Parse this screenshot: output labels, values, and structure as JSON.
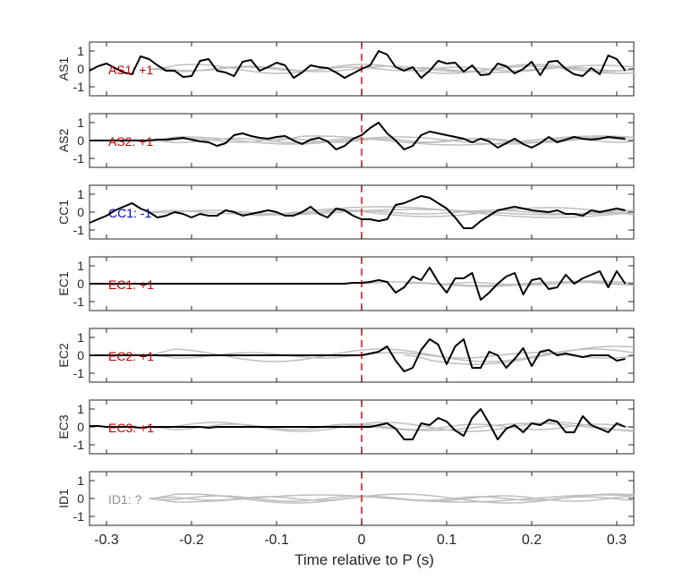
{
  "chart_data": {
    "type": "line",
    "xlabel": "Time relative to P (s)",
    "xlim": [
      -0.32,
      0.32
    ],
    "xticks": [
      -0.3,
      -0.2,
      -0.1,
      0,
      0.1,
      0.2,
      0.3
    ],
    "xtick_labels": [
      "-0.3",
      "-0.2",
      "-0.1",
      "0",
      "0.1",
      "0.2",
      "0.3"
    ],
    "ylim": [
      -1.5,
      1.5
    ],
    "yticks": [
      -1,
      0,
      1
    ],
    "ytick_labels": [
      "-1",
      "0",
      "1"
    ],
    "marker_line": {
      "x": 0,
      "color": "#e01010",
      "style": "dashed"
    },
    "colors": {
      "main": "#000000",
      "background_traces": "#bfbfbf",
      "positive_label": "#c00000",
      "negative_label": "#0000c0",
      "unknown_label": "#909090"
    },
    "panels": [
      {
        "ylabel": "AS1",
        "label": "AS1: +1",
        "polarity": "positive",
        "x": [
          -0.32,
          -0.31,
          -0.3,
          -0.29,
          -0.28,
          -0.27,
          -0.26,
          -0.25,
          -0.24,
          -0.23,
          -0.22,
          -0.21,
          -0.2,
          -0.19,
          -0.18,
          -0.17,
          -0.16,
          -0.15,
          -0.14,
          -0.13,
          -0.12,
          -0.11,
          -0.1,
          -0.09,
          -0.08,
          -0.07,
          -0.06,
          -0.05,
          -0.04,
          -0.03,
          -0.02,
          -0.01,
          0,
          0.01,
          0.02,
          0.03,
          0.04,
          0.05,
          0.06,
          0.07,
          0.08,
          0.09,
          0.1,
          0.11,
          0.12,
          0.13,
          0.14,
          0.15,
          0.16,
          0.17,
          0.18,
          0.19,
          0.2,
          0.21,
          0.22,
          0.23,
          0.24,
          0.25,
          0.26,
          0.27,
          0.28,
          0.29,
          0.3,
          0.31
        ],
        "y": [
          -0.1,
          0.15,
          0.3,
          0.05,
          -0.2,
          -0.3,
          0.7,
          0.55,
          0.2,
          -0.1,
          -0.1,
          -0.45,
          -0.4,
          0.45,
          0.55,
          -0.1,
          -0.2,
          -0.4,
          0.4,
          0.5,
          -0.1,
          0.1,
          0.35,
          0.2,
          -0.5,
          -0.2,
          0.2,
          0.1,
          0.05,
          -0.2,
          -0.5,
          -0.25,
          0.0,
          0.2,
          1.0,
          0.8,
          0.1,
          -0.1,
          0.1,
          -0.5,
          -0.1,
          0.45,
          0.3,
          0.35,
          -0.15,
          0.2,
          -0.35,
          -0.3,
          0.3,
          0.15,
          -0.25,
          0.0,
          0.4,
          -0.35,
          0.4,
          0.45,
          0.0,
          -0.3,
          -0.4,
          0.05,
          -0.3,
          0.75,
          0.55,
          -0.1
        ],
        "background": [
          {
            "amp": 0.15,
            "freq": 6,
            "phase": 0.3,
            "start": -0.25
          },
          {
            "amp": 0.25,
            "freq": 5,
            "phase": 1.5,
            "start": -0.25
          },
          {
            "amp": 0.1,
            "freq": 8,
            "phase": 2.1,
            "start": -0.25
          },
          {
            "amp": 0.2,
            "freq": 4,
            "phase": 0.8,
            "start": 0.05
          }
        ]
      },
      {
        "ylabel": "AS2",
        "label": "AS2: +1",
        "polarity": "positive",
        "x": [
          -0.32,
          -0.31,
          -0.3,
          -0.29,
          -0.28,
          -0.27,
          -0.26,
          -0.25,
          -0.24,
          -0.23,
          -0.22,
          -0.21,
          -0.2,
          -0.19,
          -0.18,
          -0.17,
          -0.16,
          -0.15,
          -0.14,
          -0.13,
          -0.12,
          -0.11,
          -0.1,
          -0.09,
          -0.08,
          -0.07,
          -0.06,
          -0.05,
          -0.04,
          -0.03,
          -0.02,
          -0.01,
          0,
          0.01,
          0.02,
          0.03,
          0.04,
          0.05,
          0.06,
          0.07,
          0.08,
          0.09,
          0.1,
          0.11,
          0.12,
          0.13,
          0.14,
          0.15,
          0.16,
          0.17,
          0.18,
          0.19,
          0.2,
          0.21,
          0.22,
          0.23,
          0.24,
          0.25,
          0.26,
          0.27,
          0.28,
          0.29,
          0.3,
          0.31
        ],
        "y": [
          0.0,
          0.0,
          0.0,
          0.0,
          0.0,
          0.0,
          0.0,
          0.0,
          0.05,
          0.05,
          0.1,
          0.15,
          0.05,
          -0.05,
          -0.1,
          -0.3,
          -0.15,
          0.3,
          0.4,
          0.25,
          0.15,
          0.1,
          0.2,
          0.25,
          0.0,
          -0.2,
          0.05,
          0.15,
          -0.05,
          -0.5,
          -0.3,
          0.1,
          0.3,
          0.7,
          1.0,
          0.4,
          0.0,
          -0.5,
          -0.3,
          0.3,
          0.5,
          0.4,
          0.3,
          0.2,
          0.1,
          -0.1,
          0.1,
          -0.05,
          -0.4,
          -0.15,
          0.1,
          -0.2,
          -0.4,
          -0.15,
          0.2,
          -0.1,
          0.05,
          0.2,
          0.1,
          0.05,
          0.1,
          0.2,
          0.15,
          0.1
        ],
        "background": [
          {
            "amp": 0.2,
            "freq": 4,
            "phase": 0.5,
            "start": -0.25
          },
          {
            "amp": 0.12,
            "freq": 7,
            "phase": 1.8,
            "start": -0.25
          },
          {
            "amp": 0.25,
            "freq": 3,
            "phase": 2.6,
            "start": -0.1
          },
          {
            "amp": 0.1,
            "freq": 9,
            "phase": 0.2,
            "start": -0.25
          }
        ]
      },
      {
        "ylabel": "CC1",
        "label": "CC1: -1",
        "polarity": "negative",
        "x": [
          -0.32,
          -0.31,
          -0.3,
          -0.29,
          -0.28,
          -0.27,
          -0.26,
          -0.25,
          -0.24,
          -0.23,
          -0.22,
          -0.21,
          -0.2,
          -0.19,
          -0.18,
          -0.17,
          -0.16,
          -0.15,
          -0.14,
          -0.13,
          -0.12,
          -0.11,
          -0.1,
          -0.09,
          -0.08,
          -0.07,
          -0.06,
          -0.05,
          -0.04,
          -0.03,
          -0.02,
          -0.01,
          0,
          0.01,
          0.02,
          0.03,
          0.04,
          0.05,
          0.06,
          0.07,
          0.08,
          0.09,
          0.1,
          0.11,
          0.12,
          0.13,
          0.14,
          0.15,
          0.16,
          0.17,
          0.18,
          0.19,
          0.2,
          0.21,
          0.22,
          0.23,
          0.24,
          0.25,
          0.26,
          0.27,
          0.28,
          0.29,
          0.3,
          0.31
        ],
        "y": [
          -0.6,
          -0.4,
          -0.2,
          0.1,
          0.3,
          0.5,
          0.2,
          0.0,
          -0.3,
          -0.2,
          0.0,
          -0.1,
          -0.3,
          -0.1,
          -0.2,
          -0.2,
          0.1,
          0.0,
          -0.2,
          -0.1,
          0.0,
          0.1,
          0.0,
          -0.2,
          -0.2,
          0.0,
          0.3,
          -0.1,
          -0.3,
          0.2,
          0.1,
          -0.2,
          -0.4,
          -0.4,
          -0.5,
          -0.4,
          0.4,
          0.5,
          0.7,
          0.9,
          0.8,
          0.5,
          0.2,
          -0.3,
          -0.9,
          -0.9,
          -0.5,
          -0.2,
          0.1,
          0.2,
          0.3,
          0.2,
          0.1,
          0.05,
          0.0,
          0.1,
          -0.1,
          -0.1,
          -0.2,
          0.1,
          0.0,
          0.1,
          0.2,
          0.1
        ],
        "background": [
          {
            "amp": 0.15,
            "freq": 3,
            "phase": 0.4,
            "start": -0.25
          },
          {
            "amp": 0.3,
            "freq": 2.5,
            "phase": 1.2,
            "start": -0.15
          },
          {
            "amp": 0.1,
            "freq": 6,
            "phase": 2.0,
            "start": -0.25
          },
          {
            "amp": 0.25,
            "freq": 3.5,
            "phase": 3.0,
            "start": -0.05
          }
        ]
      },
      {
        "ylabel": "EC1",
        "label": "EC1: +1",
        "polarity": "positive",
        "x": [
          -0.32,
          -0.31,
          -0.3,
          -0.29,
          -0.28,
          -0.27,
          -0.26,
          -0.25,
          -0.24,
          -0.23,
          -0.22,
          -0.21,
          -0.2,
          -0.19,
          -0.18,
          -0.17,
          -0.16,
          -0.15,
          -0.14,
          -0.13,
          -0.12,
          -0.11,
          -0.1,
          -0.09,
          -0.08,
          -0.07,
          -0.06,
          -0.05,
          -0.04,
          -0.03,
          -0.02,
          -0.01,
          0,
          0.01,
          0.02,
          0.03,
          0.04,
          0.05,
          0.06,
          0.07,
          0.08,
          0.09,
          0.1,
          0.11,
          0.12,
          0.13,
          0.14,
          0.15,
          0.16,
          0.17,
          0.18,
          0.19,
          0.2,
          0.21,
          0.22,
          0.23,
          0.24,
          0.25,
          0.26,
          0.27,
          0.28,
          0.29,
          0.3,
          0.31
        ],
        "y": [
          0.0,
          0.0,
          0.0,
          0.0,
          0.0,
          0.0,
          0.0,
          0.0,
          0.0,
          0.0,
          0.0,
          0.0,
          0.0,
          0.0,
          0.0,
          0.0,
          0.0,
          0.0,
          0.0,
          0.0,
          0.0,
          0.0,
          0.0,
          0.0,
          0.0,
          0.0,
          0.0,
          0.0,
          0.0,
          0.0,
          0.0,
          0.05,
          0.05,
          0.1,
          0.2,
          0.1,
          -0.5,
          -0.2,
          0.4,
          0.2,
          0.9,
          0.1,
          -0.5,
          0.3,
          0.3,
          0.6,
          -0.9,
          -0.5,
          0.0,
          0.4,
          0.6,
          -0.6,
          0.2,
          0.3,
          -0.3,
          -0.2,
          0.5,
          0.0,
          0.3,
          0.5,
          0.7,
          -0.2,
          0.7,
          0.0
        ],
        "background": [
          {
            "amp": 0.1,
            "freq": 5,
            "phase": 0.3,
            "start": 0.0
          },
          {
            "amp": 0.15,
            "freq": 4,
            "phase": 1.1,
            "start": 0.05
          },
          {
            "amp": 0.08,
            "freq": 7,
            "phase": 2.4,
            "start": 0.1
          }
        ]
      },
      {
        "ylabel": "EC2",
        "label": "EC2: +1",
        "polarity": "positive",
        "x": [
          -0.32,
          -0.31,
          -0.3,
          -0.29,
          -0.28,
          -0.27,
          -0.26,
          -0.25,
          -0.24,
          -0.23,
          -0.22,
          -0.21,
          -0.2,
          -0.19,
          -0.18,
          -0.17,
          -0.16,
          -0.15,
          -0.14,
          -0.13,
          -0.12,
          -0.11,
          -0.1,
          -0.09,
          -0.08,
          -0.07,
          -0.06,
          -0.05,
          -0.04,
          -0.03,
          -0.02,
          -0.01,
          0,
          0.01,
          0.02,
          0.03,
          0.04,
          0.05,
          0.06,
          0.07,
          0.08,
          0.09,
          0.1,
          0.11,
          0.12,
          0.13,
          0.14,
          0.15,
          0.16,
          0.17,
          0.18,
          0.19,
          0.2,
          0.21,
          0.22,
          0.23,
          0.24,
          0.25,
          0.26,
          0.27,
          0.28,
          0.29,
          0.3,
          0.31
        ],
        "y": [
          0.0,
          0.0,
          0.0,
          0.0,
          0.0,
          0.0,
          0.0,
          0.0,
          0.0,
          0.0,
          0.0,
          0.0,
          0.0,
          0.0,
          0.0,
          0.0,
          0.0,
          0.0,
          0.0,
          0.0,
          0.0,
          0.0,
          0.0,
          0.0,
          0.0,
          0.0,
          0.0,
          0.0,
          0.0,
          0.0,
          0.0,
          0.0,
          0.0,
          0.1,
          0.2,
          0.5,
          -0.3,
          -0.9,
          -0.7,
          0.3,
          0.9,
          0.6,
          -0.5,
          0.5,
          0.9,
          -0.7,
          -0.7,
          0.2,
          0.0,
          -0.7,
          -0.2,
          0.4,
          -0.6,
          0.2,
          0.3,
          0.0,
          0.1,
          0.0,
          -0.1,
          0.0,
          0.0,
          0.0,
          -0.3,
          -0.2
        ],
        "background": [
          {
            "amp": 0.35,
            "freq": 4,
            "phase": 1.0,
            "start": -0.25
          },
          {
            "amp": 0.5,
            "freq": 3,
            "phase": 2.2,
            "start": 0.05
          },
          {
            "amp": 0.15,
            "freq": 6,
            "phase": 0.2,
            "start": -0.25
          }
        ]
      },
      {
        "ylabel": "EC3",
        "label": "EC3: +1",
        "polarity": "positive",
        "x": [
          -0.32,
          -0.31,
          -0.3,
          -0.29,
          -0.28,
          -0.27,
          -0.26,
          -0.25,
          -0.24,
          -0.23,
          -0.22,
          -0.21,
          -0.2,
          -0.19,
          -0.18,
          -0.17,
          -0.16,
          -0.15,
          -0.14,
          -0.13,
          -0.12,
          -0.11,
          -0.1,
          -0.09,
          -0.08,
          -0.07,
          -0.06,
          -0.05,
          -0.04,
          -0.03,
          -0.02,
          -0.01,
          0,
          0.01,
          0.02,
          0.03,
          0.04,
          0.05,
          0.06,
          0.07,
          0.08,
          0.09,
          0.1,
          0.11,
          0.12,
          0.13,
          0.14,
          0.15,
          0.16,
          0.17,
          0.18,
          0.19,
          0.2,
          0.21,
          0.22,
          0.23,
          0.24,
          0.25,
          0.26,
          0.27,
          0.28,
          0.29,
          0.3,
          0.31
        ],
        "y": [
          0.05,
          0.05,
          0.0,
          0.0,
          0.0,
          0.0,
          -0.05,
          0.0,
          0.0,
          0.0,
          0.0,
          0.0,
          0.0,
          0.0,
          -0.05,
          0.0,
          0.0,
          0.0,
          0.0,
          0.0,
          0.0,
          0.0,
          0.0,
          0.0,
          0.0,
          0.0,
          0.0,
          0.0,
          0.0,
          0.0,
          0.0,
          0.0,
          0.0,
          0.0,
          0.1,
          0.2,
          -0.1,
          -0.7,
          -0.7,
          0.2,
          0.1,
          0.5,
          0.3,
          -0.2,
          -0.5,
          0.5,
          1.0,
          0.2,
          -0.7,
          -0.1,
          0.1,
          -0.3,
          0.2,
          0.1,
          0.4,
          0.3,
          -0.3,
          -0.3,
          0.6,
          0.1,
          -0.1,
          -0.3,
          0.2,
          0.0
        ],
        "background": [
          {
            "amp": 0.25,
            "freq": 5,
            "phase": 0.7,
            "start": -0.25
          },
          {
            "amp": 0.15,
            "freq": 7,
            "phase": 1.9,
            "start": -0.25
          },
          {
            "amp": 0.2,
            "freq": 4,
            "phase": 2.8,
            "start": -0.05
          }
        ]
      },
      {
        "ylabel": "ID1",
        "label": "ID1: ?",
        "polarity": "unknown",
        "x": [],
        "y": [],
        "background": [
          {
            "amp": 0.25,
            "freq": 4,
            "phase": 0.4,
            "start": -0.25
          },
          {
            "amp": 0.15,
            "freq": 6,
            "phase": 1.6,
            "start": -0.25
          },
          {
            "amp": 0.2,
            "freq": 3,
            "phase": 2.5,
            "start": -0.25
          },
          {
            "amp": 0.1,
            "freq": 8,
            "phase": 0.9,
            "start": -0.25
          }
        ]
      }
    ]
  }
}
